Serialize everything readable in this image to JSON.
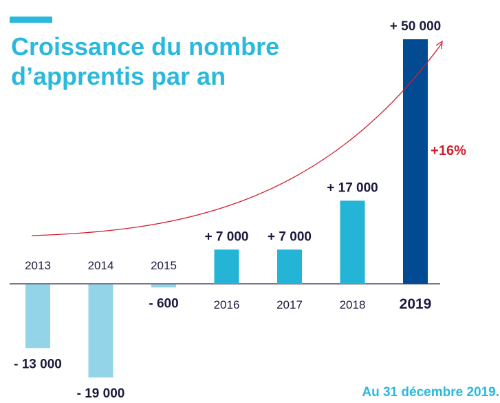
{
  "colors": {
    "title": "#29b9dc",
    "positive": "#24b5d6",
    "negative": "#93d4e8",
    "highlight": "#024a92",
    "text": "#1a1a3c",
    "trend": "#d21f2f",
    "note": "#29b9dc",
    "axis": "#2a2a4a"
  },
  "chart_data": {
    "type": "bar",
    "title": "Croissance du nombre d’apprentis par an",
    "title_lines": [
      "Croissance du nombre",
      "d’apprentis par an"
    ],
    "categories": [
      "2013",
      "2014",
      "2015",
      "2016",
      "2017",
      "2018",
      "2019"
    ],
    "values": [
      -13000,
      -19000,
      -600,
      7000,
      7000,
      17000,
      50000
    ],
    "value_labels": [
      "- 13 000",
      "- 19 000",
      "- 600",
      "+ 7 000",
      "+ 7 000",
      "+ 17 000",
      "+ 50 000"
    ],
    "highlight_category": "2019",
    "trend_annotation": "+16%",
    "footnote": "Au 31 décembre 2019.",
    "xlabel": "",
    "ylabel": "",
    "grid": false,
    "legend": "none"
  }
}
